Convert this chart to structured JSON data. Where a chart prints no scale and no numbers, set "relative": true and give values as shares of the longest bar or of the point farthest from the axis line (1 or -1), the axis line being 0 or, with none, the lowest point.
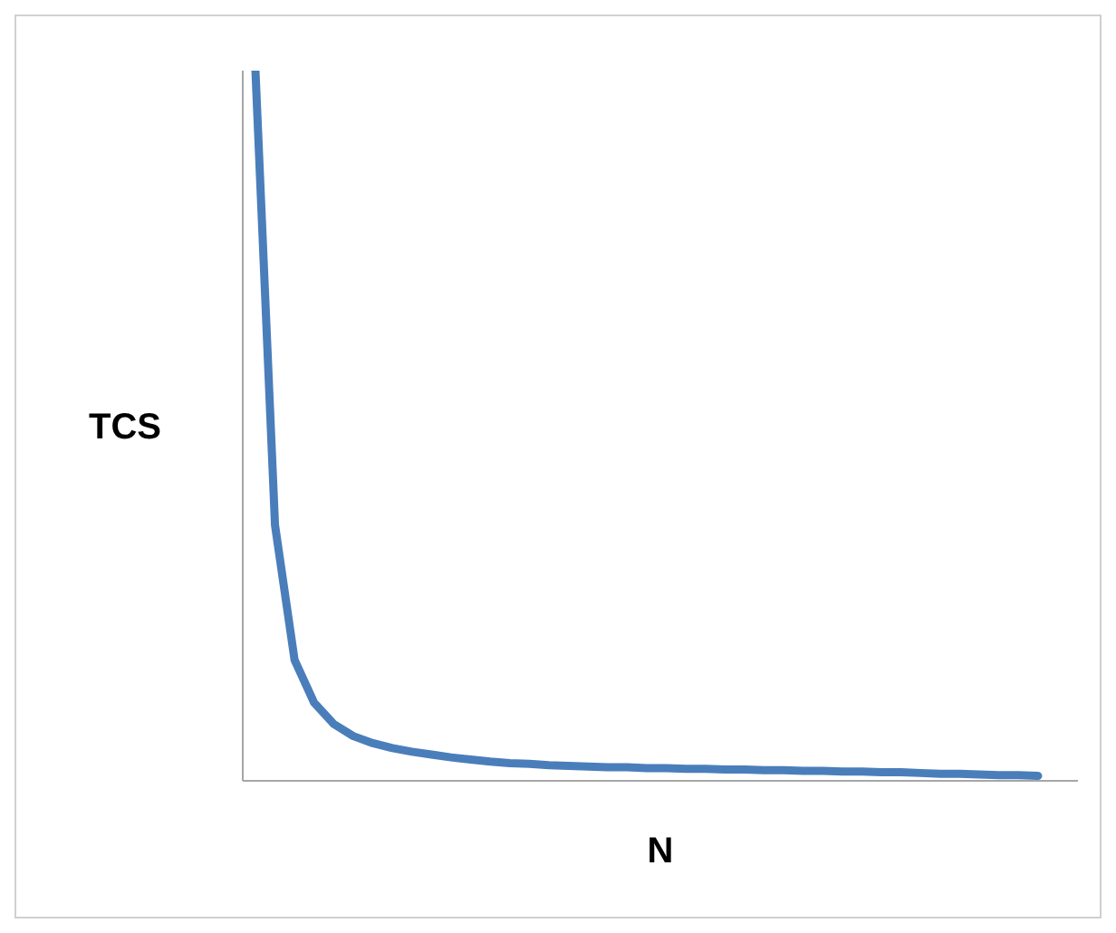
{
  "chart_data": {
    "type": "line",
    "xlabel": "N",
    "ylabel": "TCS",
    "relative": true,
    "categories": [
      null,
      null,
      null,
      null,
      null,
      null,
      null,
      null,
      null,
      null,
      null,
      null,
      null,
      null,
      null,
      null,
      null,
      null,
      null,
      null,
      null,
      null,
      null,
      null,
      null,
      null,
      null,
      null,
      null,
      null,
      null,
      null,
      null,
      null,
      null,
      null,
      null,
      null,
      null,
      null,
      null
    ],
    "series": [
      {
        "color": "#4a7ebb",
        "values": [
          1.0,
          0.36,
          0.17,
          0.11,
          0.08,
          0.063,
          0.053,
          0.046,
          0.041,
          0.037,
          0.033,
          0.03,
          0.027,
          0.025,
          0.024,
          0.022,
          0.021,
          0.02,
          0.019,
          0.019,
          0.018,
          0.018,
          0.017,
          0.017,
          0.016,
          0.016,
          0.015,
          0.015,
          0.014,
          0.014,
          0.013,
          0.013,
          0.012,
          0.012,
          0.011,
          0.01,
          0.01,
          0.009,
          0.008,
          0.008,
          0.007
        ]
      }
    ],
    "grid": false,
    "legend": false,
    "marker": "none",
    "line_style": "solid"
  }
}
